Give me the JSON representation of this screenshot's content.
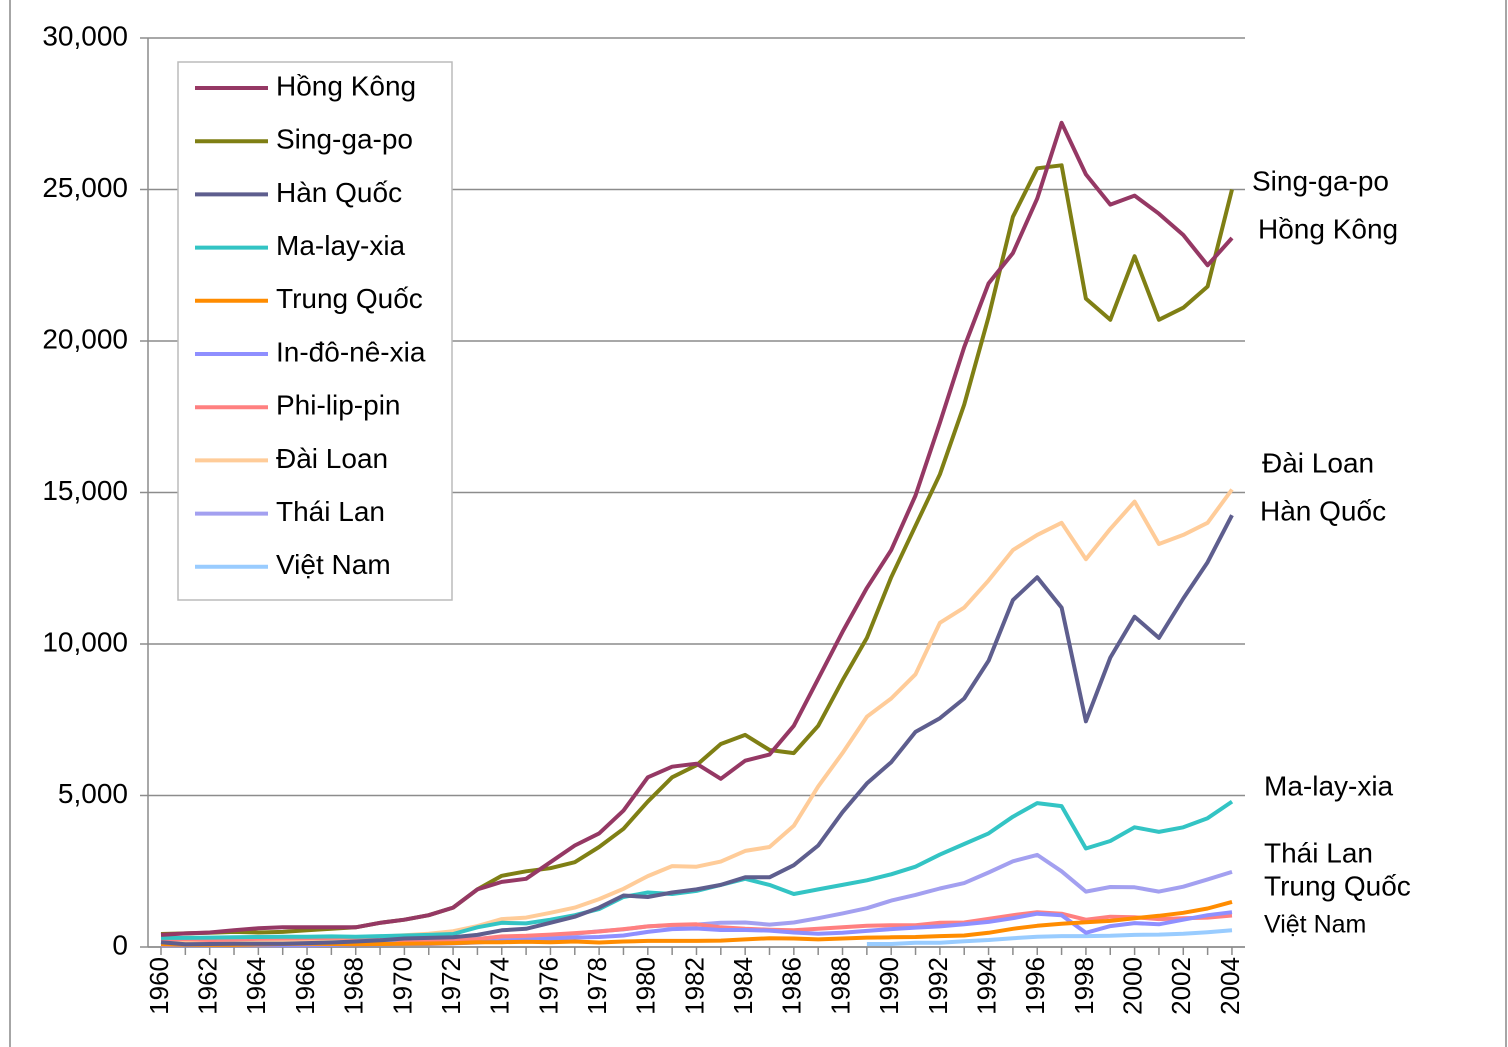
{
  "chart_data": {
    "type": "line",
    "categories": [
      "1960",
      null,
      "1962",
      null,
      "1964",
      null,
      "1966",
      null,
      "1968",
      null,
      "1970",
      null,
      "1972",
      null,
      "1974",
      null,
      "1976",
      null,
      "1978",
      null,
      "1980",
      null,
      "1982",
      null,
      "1984",
      null,
      "1986",
      null,
      "1988",
      null,
      "1990",
      null,
      "1992",
      null,
      "1994",
      null,
      "1996",
      null,
      "1998",
      null,
      "2000",
      null,
      "2002",
      null,
      "2004"
    ],
    "ylim": [
      0,
      30000
    ],
    "yticks": [
      0,
      {
        "value": 5000,
        "label": "5,000"
      },
      {
        "value": 10000,
        "label": "10,000"
      },
      {
        "value": 15000,
        "label": "15,000"
      },
      {
        "value": 20000,
        "label": "20,000"
      },
      {
        "value": 25000,
        "label": "25,000"
      },
      {
        "value": 30000,
        "label": "30,000"
      }
    ],
    "grid": true,
    "legend": "top-left",
    "series": [
      {
        "name": "Hồng Kông",
        "color": "#953864",
        "values": [
          400,
          450,
          480,
          550,
          620,
          650,
          650,
          650,
          650,
          800,
          900,
          1050,
          1300,
          1900,
          2150,
          2250,
          2800,
          3350,
          3750,
          4500,
          5600,
          5950,
          6050,
          5550,
          6150,
          6350,
          7300,
          8850,
          10400,
          11850,
          13100,
          14900,
          17300,
          19800,
          21900,
          22900,
          24700,
          27200,
          25500,
          24500,
          24800,
          24200,
          23500,
          22500,
          23400
        ]
      },
      {
        "name": "Sing-ga-po",
        "color": "#7f7f14",
        "values": [
          430,
          450,
          470,
          500,
          480,
          500,
          550,
          600,
          650,
          800,
          900,
          1050,
          1300,
          1900,
          2350,
          2500,
          2600,
          2800,
          3300,
          3900,
          4800,
          5600,
          6000,
          6700,
          7000,
          6500,
          6400,
          7300,
          8800,
          10200,
          12200,
          13900,
          15600,
          17900,
          20800,
          24100,
          25700,
          25800,
          21400,
          20700,
          22800,
          20700,
          21100,
          21800,
          25000
        ]
      },
      {
        "name": "Hàn Quốc",
        "color": "#5e5e8e",
        "values": [
          160,
          90,
          100,
          110,
          110,
          110,
          130,
          150,
          180,
          220,
          280,
          300,
          320,
          400,
          550,
          600,
          800,
          1000,
          1300,
          1700,
          1650,
          1800,
          1900,
          2050,
          2300,
          2300,
          2700,
          3350,
          4450,
          5400,
          6100,
          7100,
          7550,
          8200,
          9450,
          11450,
          12200,
          11200,
          7450,
          9550,
          10900,
          10200,
          11500,
          12700,
          14250
        ]
      },
      {
        "name": "Ma-lay-xia",
        "color": "#33c4c4",
        "values": [
          300,
          300,
          310,
          320,
          330,
          340,
          340,
          350,
          340,
          360,
          380,
          400,
          430,
          650,
          800,
          780,
          900,
          1050,
          1250,
          1650,
          1800,
          1750,
          1850,
          2050,
          2250,
          2050,
          1750,
          1900,
          2050,
          2200,
          2400,
          2650,
          3050,
          3400,
          3750,
          4300,
          4750,
          4650,
          3250,
          3500,
          3950,
          3800,
          3950,
          4250,
          4800
        ]
      },
      {
        "name": "Trung Quốc",
        "color": "#ff8c00",
        "values": [
          90,
          75,
          70,
          70,
          85,
          100,
          105,
          100,
          90,
          100,
          110,
          115,
          130,
          155,
          160,
          175,
          160,
          180,
          150,
          180,
          200,
          200,
          200,
          210,
          250,
          290,
          280,
          250,
          280,
          310,
          320,
          330,
          360,
          380,
          470,
          600,
          700,
          770,
          820,
          860,
          950,
          1030,
          1130,
          1270,
          1490
        ]
      },
      {
        "name": "In-đô-nê-xia",
        "color": "#8f8fff",
        "values": [
          60,
          60,
          60,
          60,
          60,
          60,
          60,
          70,
          80,
          90,
          100,
          100,
          120,
          150,
          200,
          230,
          270,
          310,
          330,
          380,
          500,
          590,
          610,
          560,
          560,
          540,
          480,
          440,
          470,
          530,
          590,
          640,
          680,
          750,
          830,
          950,
          1100,
          1050,
          470,
          690,
          790,
          750,
          900,
          1050,
          1150
        ]
      },
      {
        "name": "Phi-lip-pin",
        "color": "#ff8080",
        "values": [
          250,
          260,
          230,
          250,
          270,
          280,
          290,
          300,
          310,
          330,
          200,
          210,
          220,
          260,
          350,
          370,
          410,
          460,
          510,
          590,
          680,
          730,
          750,
          650,
          600,
          570,
          550,
          600,
          650,
          700,
          720,
          720,
          800,
          810,
          930,
          1050,
          1150,
          1100,
          900,
          1000,
          980,
          920,
          950,
          970,
          1040
        ]
      },
      {
        "name": "Đài Loan",
        "color": "#ffcc99",
        "values": [
          160,
          150,
          160,
          180,
          200,
          220,
          240,
          270,
          300,
          340,
          390,
          440,
          520,
          690,
          920,
          970,
          1130,
          1300,
          1580,
          1920,
          2340,
          2670,
          2650,
          2820,
          3170,
          3300,
          4000,
          5300,
          6400,
          7600,
          8200,
          9000,
          10700,
          11200,
          12100,
          13100,
          13600,
          14000,
          12800,
          13800,
          14700,
          13300,
          13600,
          14000,
          15100
        ]
      },
      {
        "name": "Thái Lan",
        "color": "#a3a0f0",
        "values": [
          100,
          110,
          110,
          120,
          130,
          140,
          160,
          170,
          180,
          190,
          190,
          190,
          210,
          270,
          330,
          350,
          390,
          440,
          520,
          580,
          680,
          720,
          740,
          800,
          810,
          740,
          810,
          950,
          1110,
          1280,
          1530,
          1720,
          1930,
          2110,
          2460,
          2830,
          3040,
          2500,
          1830,
          1980,
          1970,
          1830,
          1990,
          2230,
          2480
        ]
      },
      {
        "name": "Việt Nam",
        "color": "#99ccff",
        "values": [
          null,
          null,
          null,
          null,
          null,
          null,
          null,
          null,
          null,
          null,
          null,
          null,
          null,
          null,
          null,
          null,
          null,
          null,
          null,
          null,
          null,
          null,
          null,
          null,
          null,
          null,
          null,
          null,
          null,
          100,
          100,
          140,
          140,
          190,
          230,
          290,
          340,
          360,
          360,
          370,
          400,
          410,
          440,
          490,
          550
        ]
      }
    ],
    "annotations": [
      "Sing-ga-po",
      "Hồng Kông",
      "Đài Loan",
      "Hàn Quốc",
      "Ma-lay-xia",
      "Thái Lan",
      "Trung Quốc",
      "Việt Nam"
    ]
  }
}
